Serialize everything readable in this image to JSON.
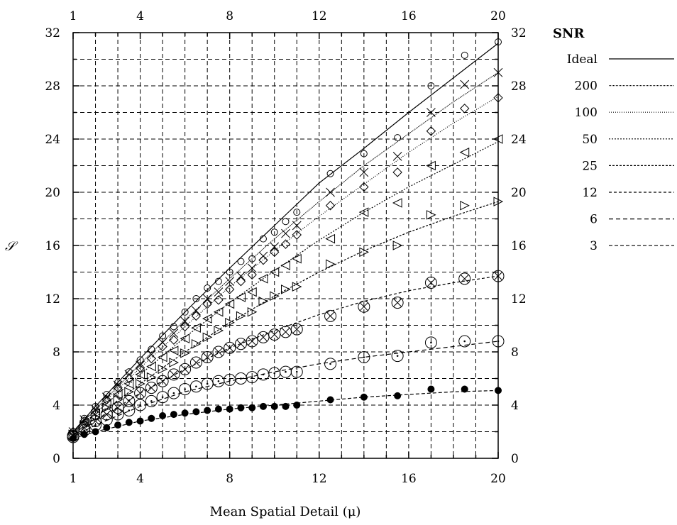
{
  "chart_data": {
    "type": "scatter",
    "xlabel": "Mean Spatial Detail (μ)",
    "ylabel": "𝒮",
    "xlim": [
      1,
      20
    ],
    "ylim": [
      0,
      32
    ],
    "x_ticks_labeled": [
      1,
      4,
      8,
      12,
      16,
      20
    ],
    "y_ticks_labeled": [
      0,
      4,
      8,
      12,
      16,
      20,
      24,
      28,
      32
    ],
    "x_ticks_bottom": [
      "1",
      "4",
      "8",
      "12",
      "16",
      "20"
    ],
    "x_ticks_top": [
      "1",
      "4",
      "8",
      "12",
      "16",
      "20"
    ],
    "y_ticks_left": [
      "0",
      "4",
      "8",
      "12",
      "16",
      "20",
      "24",
      "28",
      "32"
    ],
    "y_ticks_right": [
      "0",
      "4",
      "8",
      "12",
      "16",
      "20",
      "24",
      "28",
      "32"
    ],
    "grid": true,
    "legend": {
      "title": "SNR",
      "position": "right"
    },
    "x_points": [
      1,
      1.5,
      2,
      2.5,
      3,
      3.5,
      4,
      4.5,
      5,
      5.5,
      6,
      6.5,
      7,
      7.5,
      8,
      8.5,
      9,
      9.5,
      10,
      10.5,
      11,
      12.5,
      14,
      15.5,
      17,
      18.5,
      20
    ],
    "fit_x": [
      1,
      2,
      4,
      6,
      8,
      10,
      12,
      14,
      16,
      18,
      20
    ],
    "series": [
      {
        "name": "Ideal",
        "marker": "circle",
        "dash": "",
        "fit": [
          2.0,
          3.9,
          7.5,
          11.0,
          14.3,
          17.5,
          20.7,
          23.3,
          26.0,
          28.6,
          31.2
        ],
        "values": [
          2.0,
          3.0,
          3.9,
          4.8,
          5.7,
          6.5,
          7.4,
          8.2,
          9.2,
          9.9,
          11.0,
          12.0,
          12.8,
          13.3,
          14.0,
          14.8,
          15.0,
          16.5,
          17.0,
          17.8,
          18.5,
          21.4,
          22.9,
          24.1,
          28.0,
          30.3,
          31.3
        ]
      },
      {
        "name": "200",
        "marker": "cross",
        "dash": "1,1",
        "fit": [
          2.0,
          3.7,
          7.1,
          10.4,
          13.5,
          16.5,
          19.3,
          22.0,
          24.4,
          26.8,
          29.0
        ],
        "values": [
          2.0,
          2.9,
          3.7,
          4.6,
          5.5,
          6.3,
          7.0,
          7.8,
          8.7,
          9.4,
          10.3,
          11.1,
          12.0,
          12.5,
          13.3,
          13.7,
          14.3,
          15.2,
          15.9,
          16.9,
          17.5,
          20.0,
          21.5,
          22.7,
          26.0,
          28.1,
          29.0
        ]
      },
      {
        "name": "100",
        "marker": "diamond",
        "dash": "1,2",
        "fit": [
          2.0,
          3.6,
          6.8,
          9.9,
          12.9,
          15.6,
          18.2,
          20.6,
          23.0,
          25.2,
          27.2
        ],
        "values": [
          2.0,
          2.8,
          3.6,
          4.4,
          5.3,
          6.0,
          6.8,
          7.5,
          8.4,
          8.9,
          9.9,
          10.7,
          11.6,
          11.9,
          12.7,
          13.3,
          13.8,
          14.9,
          15.5,
          16.1,
          16.8,
          19.0,
          20.4,
          21.5,
          24.6,
          26.3,
          27.1
        ]
      },
      {
        "name": "50",
        "marker": "triangle-left",
        "dash": "2,2",
        "fit": [
          1.9,
          3.4,
          6.3,
          9.1,
          11.7,
          14.1,
          16.4,
          18.5,
          20.4,
          22.1,
          23.8
        ],
        "values": [
          1.9,
          2.7,
          3.4,
          4.1,
          4.8,
          5.6,
          6.3,
          6.9,
          7.6,
          8.1,
          9.0,
          9.8,
          10.5,
          11.0,
          11.6,
          12.1,
          12.5,
          13.5,
          14.0,
          14.5,
          15.0,
          16.5,
          18.5,
          19.2,
          22.0,
          23.0,
          24.0
        ]
      },
      {
        "name": "25",
        "marker": "triangle-right",
        "dash": "3,2",
        "fit": [
          1.8,
          3.1,
          5.6,
          8.0,
          10.2,
          12.2,
          14.0,
          15.6,
          17.0,
          18.2,
          19.3
        ],
        "values": [
          1.8,
          2.5,
          3.1,
          3.8,
          4.4,
          5.0,
          5.6,
          6.1,
          6.7,
          7.2,
          7.9,
          8.6,
          9.1,
          9.6,
          10.2,
          10.7,
          11.0,
          11.8,
          12.2,
          12.7,
          12.9,
          14.6,
          15.5,
          16.0,
          18.3,
          19.0,
          19.3
        ]
      },
      {
        "name": "12",
        "marker": "circle-x",
        "dash": "4,3",
        "fit": [
          1.7,
          2.8,
          4.9,
          6.7,
          8.3,
          9.6,
          10.8,
          11.8,
          12.6,
          13.2,
          13.7
        ],
        "values": [
          1.7,
          2.3,
          2.8,
          3.3,
          3.8,
          4.3,
          4.9,
          5.3,
          5.8,
          6.3,
          6.7,
          7.2,
          7.6,
          8.0,
          8.3,
          8.6,
          8.8,
          9.1,
          9.3,
          9.5,
          9.7,
          10.7,
          11.4,
          11.7,
          13.2,
          13.5,
          13.7
        ]
      },
      {
        "name": "6",
        "marker": "circle-dot",
        "dash": "6,4",
        "fit": [
          1.6,
          2.5,
          3.9,
          5.0,
          5.8,
          6.5,
          7.1,
          7.6,
          8.0,
          8.4,
          8.8
        ],
        "values": [
          1.6,
          2.1,
          2.5,
          2.9,
          3.3,
          3.6,
          4.0,
          4.3,
          4.6,
          4.9,
          5.2,
          5.4,
          5.6,
          5.8,
          5.9,
          6.0,
          6.1,
          6.3,
          6.4,
          6.5,
          6.5,
          7.1,
          7.6,
          7.7,
          8.7,
          8.8,
          8.8
        ]
      },
      {
        "name": "3",
        "marker": "filled-circle",
        "dash": "5,3",
        "fit": [
          1.5,
          2.0,
          2.8,
          3.3,
          3.7,
          4.0,
          4.3,
          4.6,
          4.8,
          5.0,
          5.1
        ],
        "values": [
          1.5,
          1.8,
          2.0,
          2.3,
          2.5,
          2.7,
          2.8,
          3.0,
          3.2,
          3.3,
          3.4,
          3.5,
          3.6,
          3.7,
          3.7,
          3.8,
          3.8,
          3.9,
          3.9,
          3.9,
          4.0,
          4.4,
          4.6,
          4.7,
          5.2,
          5.2,
          5.1
        ]
      }
    ]
  }
}
